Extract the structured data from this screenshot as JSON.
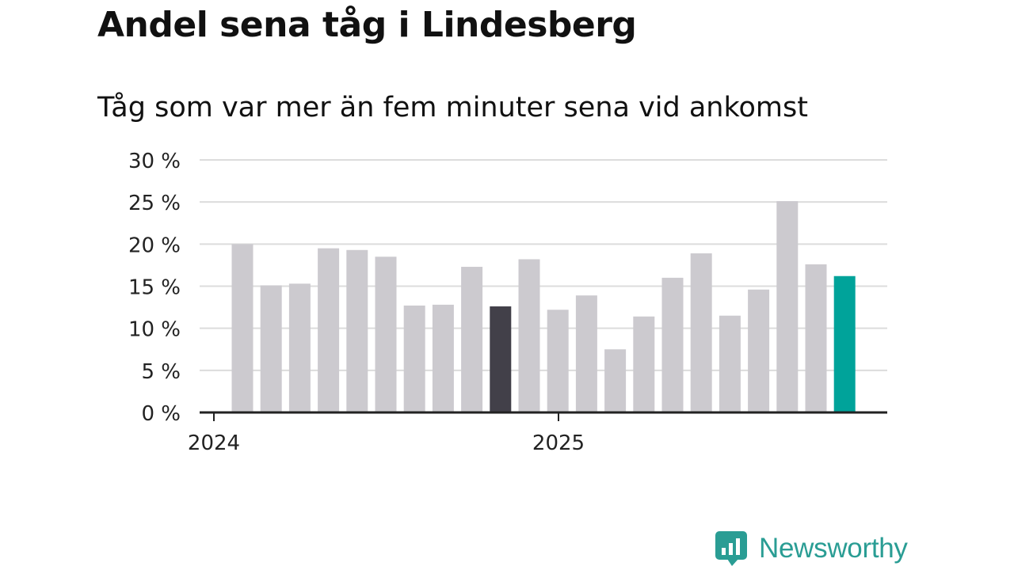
{
  "title": "Andel sena tåg i Lindesberg",
  "subtitle": "Tåg som var mer än fem minuter sena vid ankomst",
  "brand": {
    "name": "Newsworthy",
    "icon": "newsworthy-logo-icon",
    "color": "#2a9d94"
  },
  "colors": {
    "default_bar": "#cccacf",
    "highlight_bar": "#424049",
    "latest_bar": "#00a39a",
    "grid": "#dcdcdc",
    "axis": "#222222"
  },
  "chart_data": {
    "type": "bar",
    "title": "Andel sena tåg i Lindesberg",
    "subtitle": "Tåg som var mer än fem minuter sena vid ankomst",
    "xlabel": "",
    "ylabel": "",
    "ylim": [
      0,
      30
    ],
    "yticks": [
      0,
      5,
      10,
      15,
      20,
      25,
      30
    ],
    "ytick_labels": [
      "0 %",
      "5 %",
      "10 %",
      "15 %",
      "20 %",
      "25 %",
      "30 %"
    ],
    "xtick_labels": [
      {
        "label": "2024",
        "index": 0
      },
      {
        "label": "2025",
        "index": 12
      }
    ],
    "grid": true,
    "values": [
      20.0,
      15.1,
      15.3,
      19.5,
      19.3,
      18.5,
      12.7,
      12.8,
      17.3,
      12.6,
      18.2,
      12.2,
      13.9,
      7.5,
      11.4,
      16.0,
      18.9,
      11.5,
      14.6,
      25.1,
      17.6,
      16.2
    ],
    "highlight_index": 9,
    "latest_index": 21
  }
}
